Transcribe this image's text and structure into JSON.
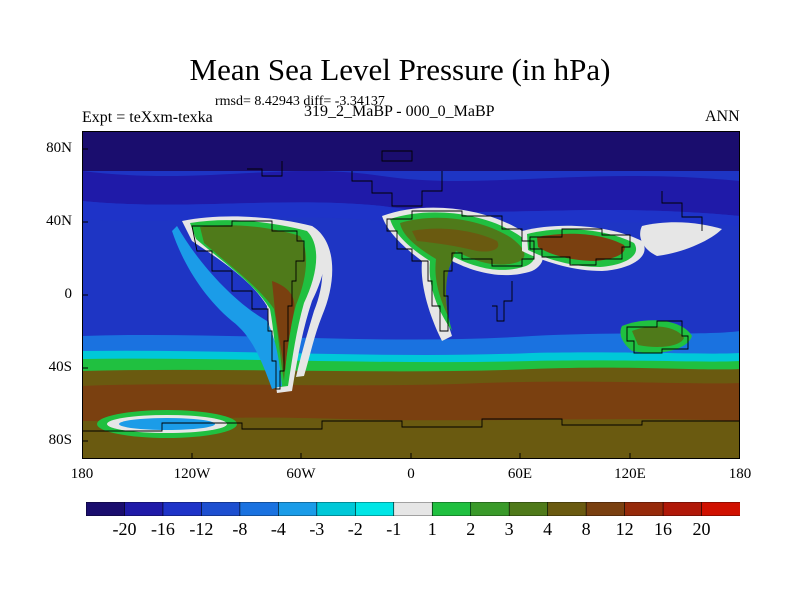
{
  "title": "Mean Sea Level Pressure (in hPa)",
  "stats_line": "rmsd= 8.42943 diff= -3.34137",
  "experiment": "Expt = teXxm-texka",
  "comparison": "319_2_MaBP - 000_0_MaBP",
  "season": "ANN",
  "lat_labels": [
    "80N",
    "40N",
    "0",
    "40S",
    "80S"
  ],
  "lon_labels": [
    "180",
    "120W",
    "60W",
    "0",
    "60E",
    "120E",
    "180"
  ],
  "colorbar": {
    "labels": [
      "-20",
      "-16",
      "-12",
      "-8",
      "-4",
      "-3",
      "-2",
      "-1",
      "1",
      "2",
      "3",
      "4",
      "8",
      "12",
      "16",
      "20"
    ],
    "colors": [
      "#1a0d6e",
      "#1f1aa8",
      "#1e33c8",
      "#1d4fd0",
      "#1a72e0",
      "#1b9ce8",
      "#00c8d8",
      "#00e6e6",
      "#e6e6e6",
      "#20c040",
      "#3a9a2a",
      "#4f7a1a",
      "#6a5a10",
      "#7a4010",
      "#962a0a",
      "#b01808",
      "#d01000"
    ]
  },
  "map": {
    "lat_range": [
      -90,
      90
    ],
    "lon_range": [
      -180,
      180
    ],
    "palette": {
      "ocean_deep": "#1e35c4",
      "ocean_mid": "#1d4fd0",
      "ocean_light": "#1a72e0",
      "polar": "#1f1aa8",
      "polar_dark": "#1a0d6e",
      "cyan": "#1b9ce8",
      "cyan_light": "#00c8d8",
      "neutral": "#e6e6e6",
      "green": "#20c040",
      "olive": "#4f7a1a",
      "brown": "#6a5a10",
      "rust": "#7a4010",
      "red": "#b01808"
    }
  }
}
